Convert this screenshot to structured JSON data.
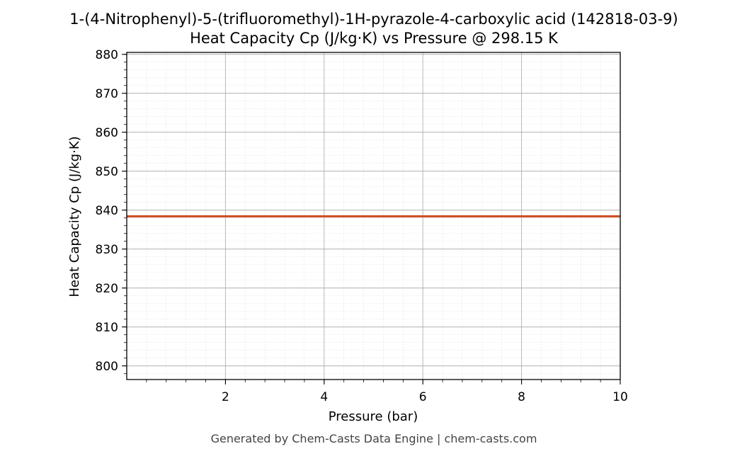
{
  "chart_data": {
    "type": "line",
    "title": "1-(4-Nitrophenyl)-5-(trifluoromethyl)-1H-pyrazole-4-carboxylic acid (142818-03-9)",
    "subtitle": "Heat Capacity Cp (J/kg·K) vs Pressure @ 298.15 K",
    "xlabel": "Pressure (bar)",
    "ylabel": "Heat Capacity Cp (J/kg·K)",
    "xlim": [
      0.0,
      10.0
    ],
    "ylim": [
      796.5,
      880.5
    ],
    "x_ticks": [
      2,
      4,
      6,
      8,
      10
    ],
    "y_ticks": [
      800,
      810,
      820,
      830,
      840,
      850,
      860,
      870,
      880
    ],
    "x_minor_step": 0.4,
    "y_minor_step": 2,
    "grid": true,
    "series": [
      {
        "x": [
          0.0,
          1.0,
          2.0,
          3.0,
          4.0,
          5.0,
          6.0,
          7.0,
          8.0,
          9.0,
          10.0
        ],
        "y": [
          838.4,
          838.4,
          838.4,
          838.4,
          838.4,
          838.4,
          838.4,
          838.4,
          838.4,
          838.4,
          838.4
        ],
        "color": "#cc5127"
      }
    ]
  },
  "footer": "Generated by Chem-Casts Data Engine | chem-casts.com"
}
